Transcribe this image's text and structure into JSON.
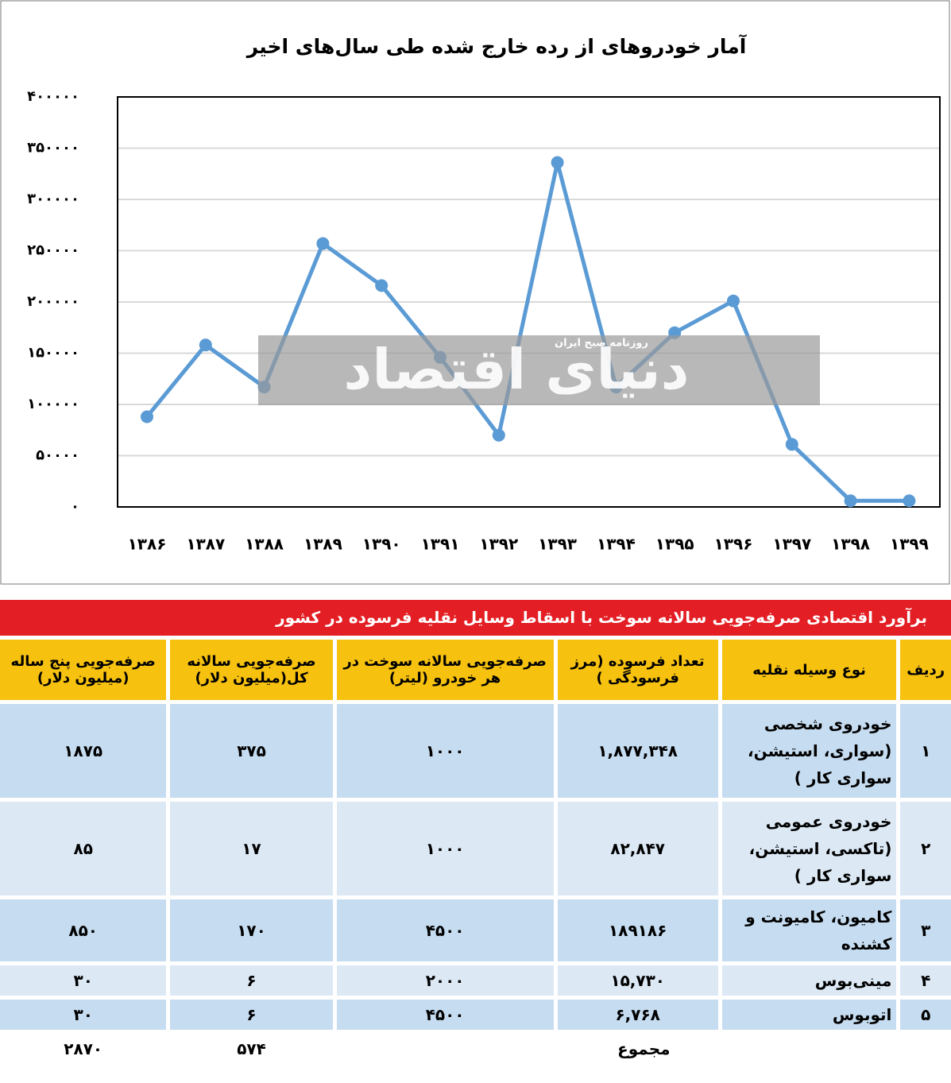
{
  "chart_data": {
    "type": "line",
    "title": "آمار خودروهای از رده خارج شده طی سال‌های اخیر",
    "categories": [
      "۱۳۸۶",
      "۱۳۸۷",
      "۱۳۸۸",
      "۱۳۸۹",
      "۱۳۹۰",
      "۱۳۹۱",
      "۱۳۹۲",
      "۱۳۹۳",
      "۱۳۹۴",
      "۱۳۹۵",
      "۱۳۹۶",
      "۱۳۹۷",
      "۱۳۹۸",
      "۱۳۹۹"
    ],
    "series": [
      {
        "color": "#5b9bd5",
        "values": [
          88000,
          158000,
          117000,
          257000,
          216000,
          146000,
          70000,
          336000,
          117000,
          170000,
          201000,
          61000,
          6000,
          6000
        ]
      }
    ],
    "ylim": [
      0,
      400000
    ],
    "yticks": [
      {
        "value": 0,
        "label": "۰"
      },
      {
        "value": 50000,
        "label": "۵۰۰۰۰"
      },
      {
        "value": 100000,
        "label": "۱۰۰۰۰۰"
      },
      {
        "value": 150000,
        "label": "۱۵۰۰۰۰"
      },
      {
        "value": 200000,
        "label": "۲۰۰۰۰۰"
      },
      {
        "value": 250000,
        "label": "۲۵۰۰۰۰"
      },
      {
        "value": 300000,
        "label": "۳۰۰۰۰۰"
      },
      {
        "value": 350000,
        "label": "۳۵۰۰۰۰"
      },
      {
        "value": 400000,
        "label": "۴۰۰۰۰۰"
      }
    ],
    "grid": true
  },
  "watermark": {
    "brand": "دنیای اقتصاد",
    "tagline": "روزنامه صبح ایران"
  },
  "table": {
    "title": "برآورد اقتصادی صرفه‌جویی سالانه سوخت با اسقاط وسایل نقلیه فرسوده در کشور",
    "columns": [
      "ردیف",
      "نوع وسیله نقلیه",
      "تعداد فرسوده (مرز فرسودگی )",
      "صرفه‌جویی سالانه سوخت در هر خودرو (لیتر)",
      "صرفه‌جویی سالانه کل(میلیون دلار)",
      "صرفه‌جویی پنج ساله (میلیون دلار)"
    ],
    "rows": [
      [
        "۱",
        "خودروی شخصی (سواری، استیشن، سواری کار )",
        "۱,۸۷۷,۳۴۸",
        "۱۰۰۰",
        "۳۷۵",
        "۱۸۷۵"
      ],
      [
        "۲",
        "خودروی عمومی (تاکسی، استیشن، سواری کار )",
        "۸۲,۸۴۷",
        "۱۰۰۰",
        "۱۷",
        "۸۵"
      ],
      [
        "۳",
        "کامیون، کامیونت و کشنده",
        "۱۸۹۱۸۶",
        "۴۵۰۰",
        "۱۷۰",
        "۸۵۰"
      ],
      [
        "۴",
        "مینی‌بوس",
        "۱۵,۷۳۰",
        "۲۰۰۰",
        "۶",
        "۳۰"
      ],
      [
        "۵",
        "اتوبوس",
        "۶,۷۶۸",
        "۴۵۰۰",
        "۶",
        "۳۰"
      ]
    ],
    "total": {
      "label": "مجموع",
      "annual": "۵۷۴",
      "five_year": "۲۸۷۰"
    }
  }
}
